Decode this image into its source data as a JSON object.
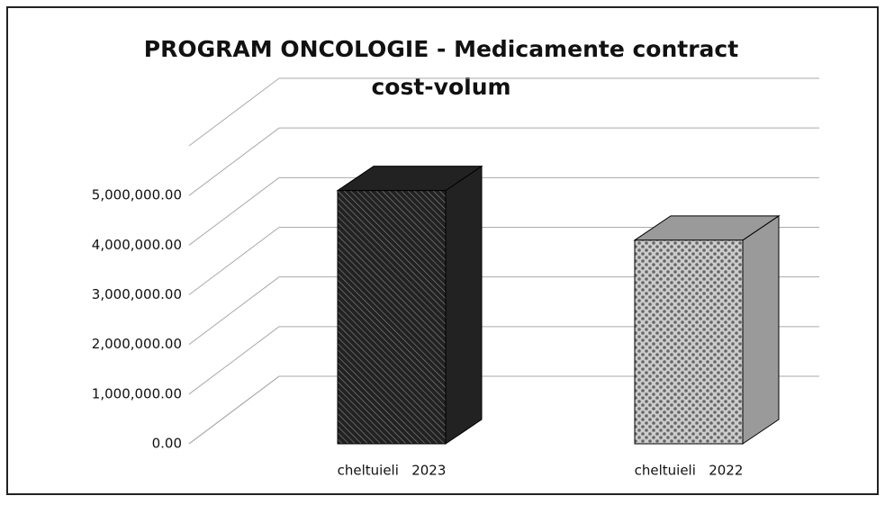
{
  "chart_data": {
    "type": "bar3d",
    "title": [
      "PROGRAM ONCOLOGIE - Medicamente contract",
      "cost-volum"
    ],
    "categories": [
      "cheltuieli   2023",
      "cheltuieli   2022"
    ],
    "values": [
      5100000,
      4100000
    ],
    "colors": [
      "#222222",
      "#9a9a9a"
    ],
    "ylim": [
      0,
      6000000
    ],
    "yticks": [
      {
        "value": 0,
        "label": "0.00"
      },
      {
        "value": 1000000,
        "label": "1,000,000.00"
      },
      {
        "value": 2000000,
        "label": "2,000,000.00"
      },
      {
        "value": 3000000,
        "label": "3,000,000.00"
      },
      {
        "value": 4000000,
        "label": "4,000,000.00"
      },
      {
        "value": 5000000,
        "label": "5,000,000.00"
      }
    ],
    "grid": true
  }
}
